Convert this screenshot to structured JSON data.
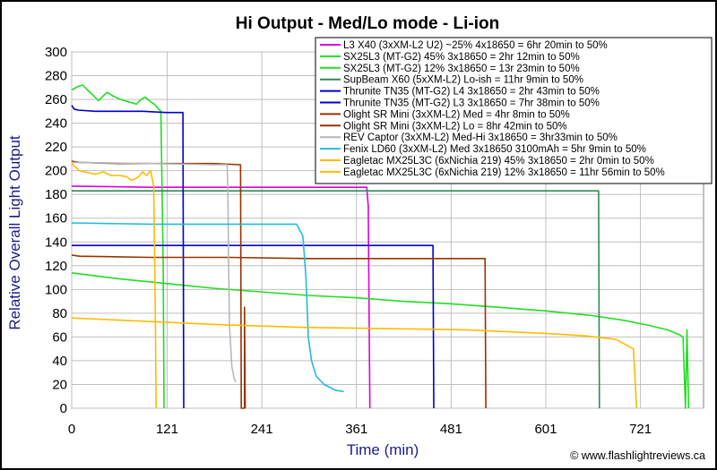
{
  "chart_data": {
    "type": "line",
    "title": "Hi Output - Med/Lo mode - Li-ion",
    "xlabel": "Time (min)",
    "ylabel": "Relative Overall Light Output",
    "xlim": [
      0,
      801
    ],
    "ylim": [
      0,
      300
    ],
    "x_ticks": [
      "0",
      "121",
      "241",
      "361",
      "481",
      "601",
      "721"
    ],
    "x_tick_values": [
      0,
      121,
      241,
      361,
      481,
      601,
      721
    ],
    "y_ticks": [
      "0",
      "20",
      "40",
      "60",
      "80",
      "100",
      "120",
      "140",
      "160",
      "180",
      "200",
      "220",
      "240",
      "260",
      "280",
      "300"
    ],
    "y_tick_values": [
      0,
      20,
      40,
      60,
      80,
      100,
      120,
      140,
      160,
      180,
      200,
      220,
      240,
      260,
      280,
      300
    ],
    "legend_position": "top-right",
    "credit": "© www.flashlightreviews.ca",
    "series": [
      {
        "name": "L3 X40 (3xXM-L2 U2) ~25% 4x18650 = 6hr 20min to 50%",
        "color": "#dd00dd",
        "points": [
          [
            0,
            187
          ],
          [
            100,
            186
          ],
          [
            200,
            186
          ],
          [
            300,
            186
          ],
          [
            362,
            186
          ],
          [
            374,
            186
          ],
          [
            376,
            170
          ],
          [
            377,
            80
          ],
          [
            378,
            0
          ]
        ]
      },
      {
        "name": "SX25L3 (MT-G2) 45% 3x18650 = 2hr 12min to 50%",
        "color": "#22dd22",
        "points": [
          [
            0,
            268
          ],
          [
            8,
            271
          ],
          [
            14,
            272
          ],
          [
            20,
            268
          ],
          [
            28,
            263
          ],
          [
            34,
            259
          ],
          [
            40,
            263
          ],
          [
            45,
            266
          ],
          [
            52,
            263
          ],
          [
            62,
            260
          ],
          [
            72,
            258
          ],
          [
            82,
            256
          ],
          [
            88,
            260
          ],
          [
            93,
            262
          ],
          [
            100,
            258
          ],
          [
            105,
            256
          ],
          [
            110,
            252
          ],
          [
            113,
            250
          ],
          [
            116,
            120
          ],
          [
            117,
            0
          ]
        ]
      },
      {
        "name": "SX25L3 (MT-G2) 12% 3x18650 = 13r 23min to 50%",
        "color": "#22dd22",
        "points": [
          [
            0,
            114
          ],
          [
            60,
            109
          ],
          [
            120,
            105
          ],
          [
            180,
            101
          ],
          [
            240,
            98
          ],
          [
            300,
            95
          ],
          [
            360,
            93
          ],
          [
            420,
            90
          ],
          [
            480,
            88
          ],
          [
            540,
            85
          ],
          [
            600,
            82
          ],
          [
            660,
            78
          ],
          [
            700,
            74
          ],
          [
            730,
            70
          ],
          [
            755,
            66
          ],
          [
            770,
            62
          ],
          [
            775,
            60
          ],
          [
            778,
            0
          ],
          [
            780,
            66
          ],
          [
            782,
            0
          ]
        ]
      },
      {
        "name": "SupBeam X60 (5xXM-L2) Lo-ish = 11hr 9min to 50%",
        "color": "#2e8b57",
        "points": [
          [
            0,
            183
          ],
          [
            100,
            183
          ],
          [
            200,
            183
          ],
          [
            300,
            183
          ],
          [
            400,
            183
          ],
          [
            500,
            183
          ],
          [
            600,
            183
          ],
          [
            668,
            183
          ],
          [
            669,
            0
          ]
        ]
      },
      {
        "name": "Thrunite TN35 (MT-G2) L4 3x18650 = 2hr 43min to 50%",
        "color": "#0000cc",
        "points": [
          [
            0,
            255
          ],
          [
            3,
            252
          ],
          [
            8,
            251
          ],
          [
            30,
            250
          ],
          [
            60,
            250
          ],
          [
            90,
            250
          ],
          [
            120,
            249
          ],
          [
            141,
            249
          ],
          [
            142,
            0
          ]
        ]
      },
      {
        "name": "Thrunite TN35 (MT-G2) L3 3x18650 = 7hr 38min to 50%",
        "color": "#0000cc",
        "points": [
          [
            0,
            137
          ],
          [
            100,
            137
          ],
          [
            200,
            137
          ],
          [
            300,
            137
          ],
          [
            400,
            137
          ],
          [
            458,
            137
          ],
          [
            459,
            0
          ]
        ]
      },
      {
        "name": "Olight SR Mini (3xXM-L2) Med = 4hr 8min to 50%",
        "color": "#993300",
        "points": [
          [
            0,
            208
          ],
          [
            10,
            207
          ],
          [
            60,
            206
          ],
          [
            120,
            206
          ],
          [
            180,
            206
          ],
          [
            214,
            205
          ],
          [
            215,
            0
          ],
          [
            219,
            0
          ],
          [
            219,
            85
          ],
          [
            220,
            0
          ]
        ]
      },
      {
        "name": "Olight SR Mini (3xXM-L2) Lo = 8hr 42min to 50%",
        "color": "#993300",
        "points": [
          [
            0,
            129
          ],
          [
            10,
            128
          ],
          [
            100,
            127
          ],
          [
            200,
            127
          ],
          [
            300,
            126
          ],
          [
            400,
            126
          ],
          [
            500,
            126
          ],
          [
            524,
            126
          ],
          [
            525,
            0
          ]
        ]
      },
      {
        "name": "REV Captor (3xXM-L2) Med-Hi 3x18650 = 3hr33min to 50%",
        "color": "#b8b8b8",
        "points": [
          [
            0,
            207
          ],
          [
            100,
            206
          ],
          [
            180,
            205
          ],
          [
            197,
            205
          ],
          [
            198,
            180
          ],
          [
            199,
            120
          ],
          [
            200,
            70
          ],
          [
            203,
            35
          ],
          [
            206,
            25
          ],
          [
            208,
            22
          ]
        ]
      },
      {
        "name": "Fenix LD60 (3xXM-L2) Med 3x18650 3100mAh = 5hr 9min to 50%",
        "color": "#22bbdd",
        "points": [
          [
            0,
            156
          ],
          [
            100,
            155
          ],
          [
            200,
            155
          ],
          [
            285,
            155
          ],
          [
            293,
            145
          ],
          [
            297,
            110
          ],
          [
            300,
            60
          ],
          [
            304,
            40
          ],
          [
            310,
            27
          ],
          [
            320,
            20
          ],
          [
            335,
            15
          ],
          [
            345,
            14
          ]
        ]
      },
      {
        "name": "Eagletac MX25L3C (6xNichia 219) 45% 3x18650 = 2hr 0min to 50%",
        "color": "#ffbb00",
        "points": [
          [
            0,
            206
          ],
          [
            10,
            200
          ],
          [
            30,
            197
          ],
          [
            40,
            199
          ],
          [
            50,
            196
          ],
          [
            60,
            196
          ],
          [
            70,
            195
          ],
          [
            75,
            192
          ],
          [
            80,
            193
          ],
          [
            85,
            195
          ],
          [
            90,
            199
          ],
          [
            95,
            196
          ],
          [
            100,
            200
          ],
          [
            103,
            190
          ],
          [
            104,
            186
          ],
          [
            106,
            80
          ],
          [
            107,
            0
          ]
        ]
      },
      {
        "name": "Eagletac MX25L3C (6xNichia 219) 12% 3x18650 = 11hr 56min to 50%",
        "color": "#ffbb00",
        "points": [
          [
            0,
            76
          ],
          [
            100,
            73
          ],
          [
            200,
            70
          ],
          [
            300,
            68
          ],
          [
            400,
            67
          ],
          [
            500,
            66
          ],
          [
            600,
            63
          ],
          [
            650,
            61
          ],
          [
            690,
            58
          ],
          [
            712,
            50
          ],
          [
            715,
            15
          ],
          [
            716,
            0
          ]
        ]
      }
    ]
  }
}
